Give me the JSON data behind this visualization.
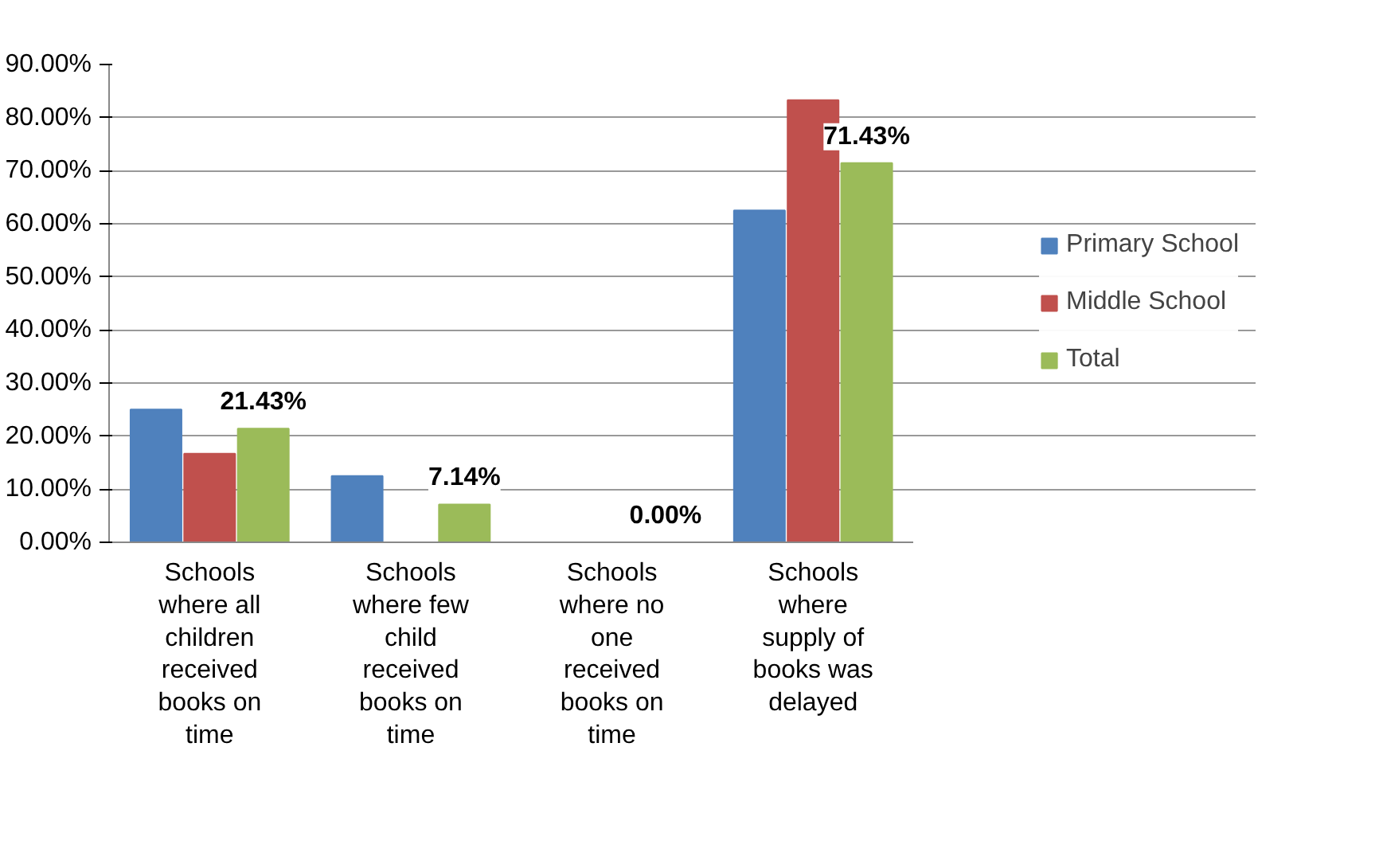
{
  "chart_data": {
    "type": "bar",
    "categories": [
      "Schools where all children received books on time",
      "Schools where few child received books on time",
      "Schools where no one received books on time",
      "Schools where supply of books was delayed"
    ],
    "series": [
      {
        "name": "Primary School",
        "color": "#4f81bd",
        "values": [
          25.0,
          12.5,
          0.0,
          62.5
        ]
      },
      {
        "name": "Middle School",
        "color": "#c0504d",
        "values": [
          16.7,
          0.0,
          0.0,
          83.3
        ]
      },
      {
        "name": "Total",
        "color": "#9bbb59",
        "values": [
          21.43,
          7.14,
          0.0,
          71.43
        ],
        "value_labels": [
          "21.43%",
          "7.14%",
          "0.00%",
          "71.43%"
        ]
      }
    ],
    "ylim": [
      0,
      90
    ],
    "yticks": [
      {
        "value": 0,
        "label": "0.00%"
      },
      {
        "value": 10,
        "label": "10.00%"
      },
      {
        "value": 20,
        "label": "20.00%"
      },
      {
        "value": 30,
        "label": "30.00%"
      },
      {
        "value": 40,
        "label": "40.00%"
      },
      {
        "value": 50,
        "label": "50.00%"
      },
      {
        "value": 60,
        "label": "60.00%"
      },
      {
        "value": 70,
        "label": "70.00%"
      },
      {
        "value": 80,
        "label": "80.00%"
      },
      {
        "value": 90,
        "label": "90.00%"
      }
    ],
    "grid": "y",
    "legend": "right"
  }
}
